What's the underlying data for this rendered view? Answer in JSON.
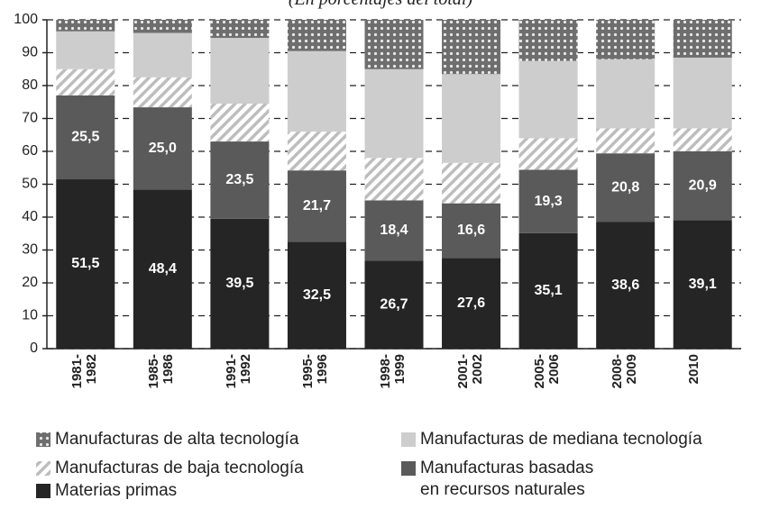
{
  "chart_data": {
    "type": "stacked_bar",
    "subtitle": "(En porcentajes del total)",
    "categories": [
      "1981-\n1982",
      "1985-\n1986",
      "1991-\n1992",
      "1995-\n1996",
      "1998-\n1999",
      "2001-\n2002",
      "2005-\n2006",
      "2008-\n2009",
      "2010"
    ],
    "series": [
      {
        "name": "Materias primas",
        "color": "#252525",
        "values": [
          51.5,
          48.4,
          39.5,
          32.5,
          26.7,
          27.6,
          35.1,
          38.6,
          39.1
        ],
        "value_labels": [
          "51,5",
          "48,4",
          "39,5",
          "32,5",
          "26,7",
          "27,6",
          "35,1",
          "38,6",
          "39,1"
        ]
      },
      {
        "name": "Manufacturas basadas\nen recursos naturales",
        "color": "#5a5a5a",
        "values": [
          25.5,
          25.0,
          23.5,
          21.7,
          18.4,
          16.6,
          19.3,
          20.8,
          20.9
        ],
        "value_labels": [
          "25,5",
          "25,0",
          "23,5",
          "21,7",
          "18,4",
          "16,6",
          "19,3",
          "20,8",
          "20,9"
        ]
      },
      {
        "name": "Manufacturas de baja tecnología",
        "color": "#bdbdbd",
        "pattern": "hatch",
        "values": [
          8,
          9.1,
          11.5,
          11.8,
          12.9,
          12.3,
          9.6,
          7.6,
          7
        ]
      },
      {
        "name": "Manufacturas de mediana tecnología",
        "color": "#cdcdcd",
        "values": [
          11.5,
          13.5,
          20,
          24.5,
          27,
          27,
          23.5,
          21,
          21.5
        ]
      },
      {
        "name": "Manufacturas de alta tecnología",
        "color": "#6e6e6e",
        "pattern": "dots",
        "values": [
          3.5,
          4.0,
          5.5,
          9.5,
          15,
          16.5,
          12.5,
          12,
          11.5
        ]
      }
    ],
    "ylim": [
      0,
      100
    ],
    "yticks": [
      0,
      10,
      20,
      30,
      40,
      50,
      60,
      70,
      80,
      90,
      100
    ],
    "grid": true
  }
}
